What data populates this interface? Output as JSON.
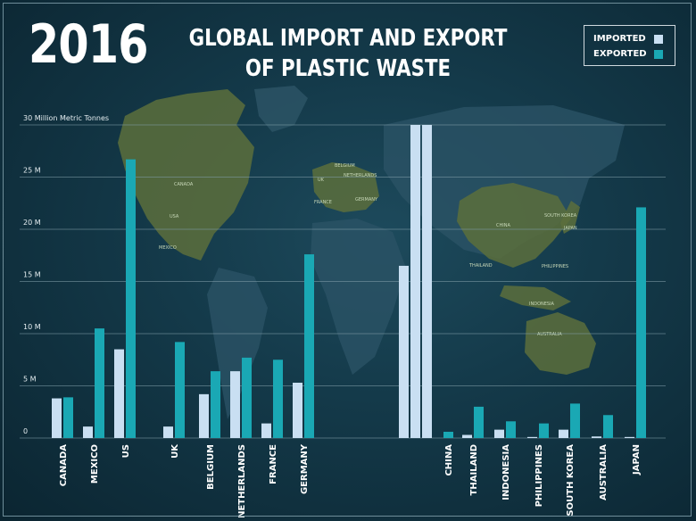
{
  "header": {
    "year": "2016",
    "title_line1": "GLOBAL IMPORT AND EXPORT",
    "title_line2": "OF PLASTIC WASTE"
  },
  "legend": {
    "items": [
      {
        "label": "IMPORTED",
        "color": "#c9dff2"
      },
      {
        "label": "EXPORTED",
        "color": "#1aa8b4"
      }
    ]
  },
  "map_labels": [
    "CANADA",
    "USA",
    "MEXICO",
    "UK",
    "BELGIUM",
    "NETHERLANDS",
    "FRANCE",
    "GERMANY",
    "CHINA",
    "SOUTH KOREA",
    "JAPAN",
    "THAILAND",
    "PHILIPPINES",
    "INDONESIA",
    "AUSTRALIA"
  ],
  "chart_data": {
    "type": "bar",
    "ylabel": "30 Million Metric Tonnes",
    "ylim": [
      0,
      30
    ],
    "y_ticks": [
      {
        "value": 0,
        "label": "0"
      },
      {
        "value": 5,
        "label": "5 M"
      },
      {
        "value": 10,
        "label": "10 M"
      },
      {
        "value": 15,
        "label": "15 M"
      },
      {
        "value": 20,
        "label": "20 M"
      },
      {
        "value": 25,
        "label": "25 M"
      },
      {
        "value": 30,
        "label": "30 Million Metric Tonnes"
      }
    ],
    "grid": true,
    "categories": [
      "CANADA",
      "MEXICO",
      "US",
      "UK",
      "BELGIUM",
      "NETHERLANDS",
      "FRANCE",
      "GERMANY",
      "CHINA",
      "THAILAND",
      "INDONESIA",
      "PHILIPPINES",
      "SOUTH KOREA",
      "AUSTRALIA",
      "JAPAN"
    ],
    "series": [
      {
        "name": "IMPORTED",
        "color": "#c9dff2",
        "values": [
          3.8,
          1.1,
          8.5,
          1.1,
          4.2,
          6.4,
          1.4,
          5.3,
          16.5,
          0.3,
          0.8,
          0.1,
          0.8,
          0.15,
          0.1
        ]
      },
      {
        "name": "EXPORTED",
        "color": "#1aa8b4",
        "values": [
          3.9,
          10.5,
          26.7,
          9.2,
          6.4,
          7.7,
          7.5,
          17.6,
          0.6,
          3.0,
          1.6,
          1.4,
          3.3,
          2.2,
          22.1
        ]
      }
    ],
    "overflow_bars": [
      {
        "category": "CHINA",
        "series": "IMPORTED",
        "count": 2,
        "note": "extends beyond 30 M"
      }
    ]
  }
}
